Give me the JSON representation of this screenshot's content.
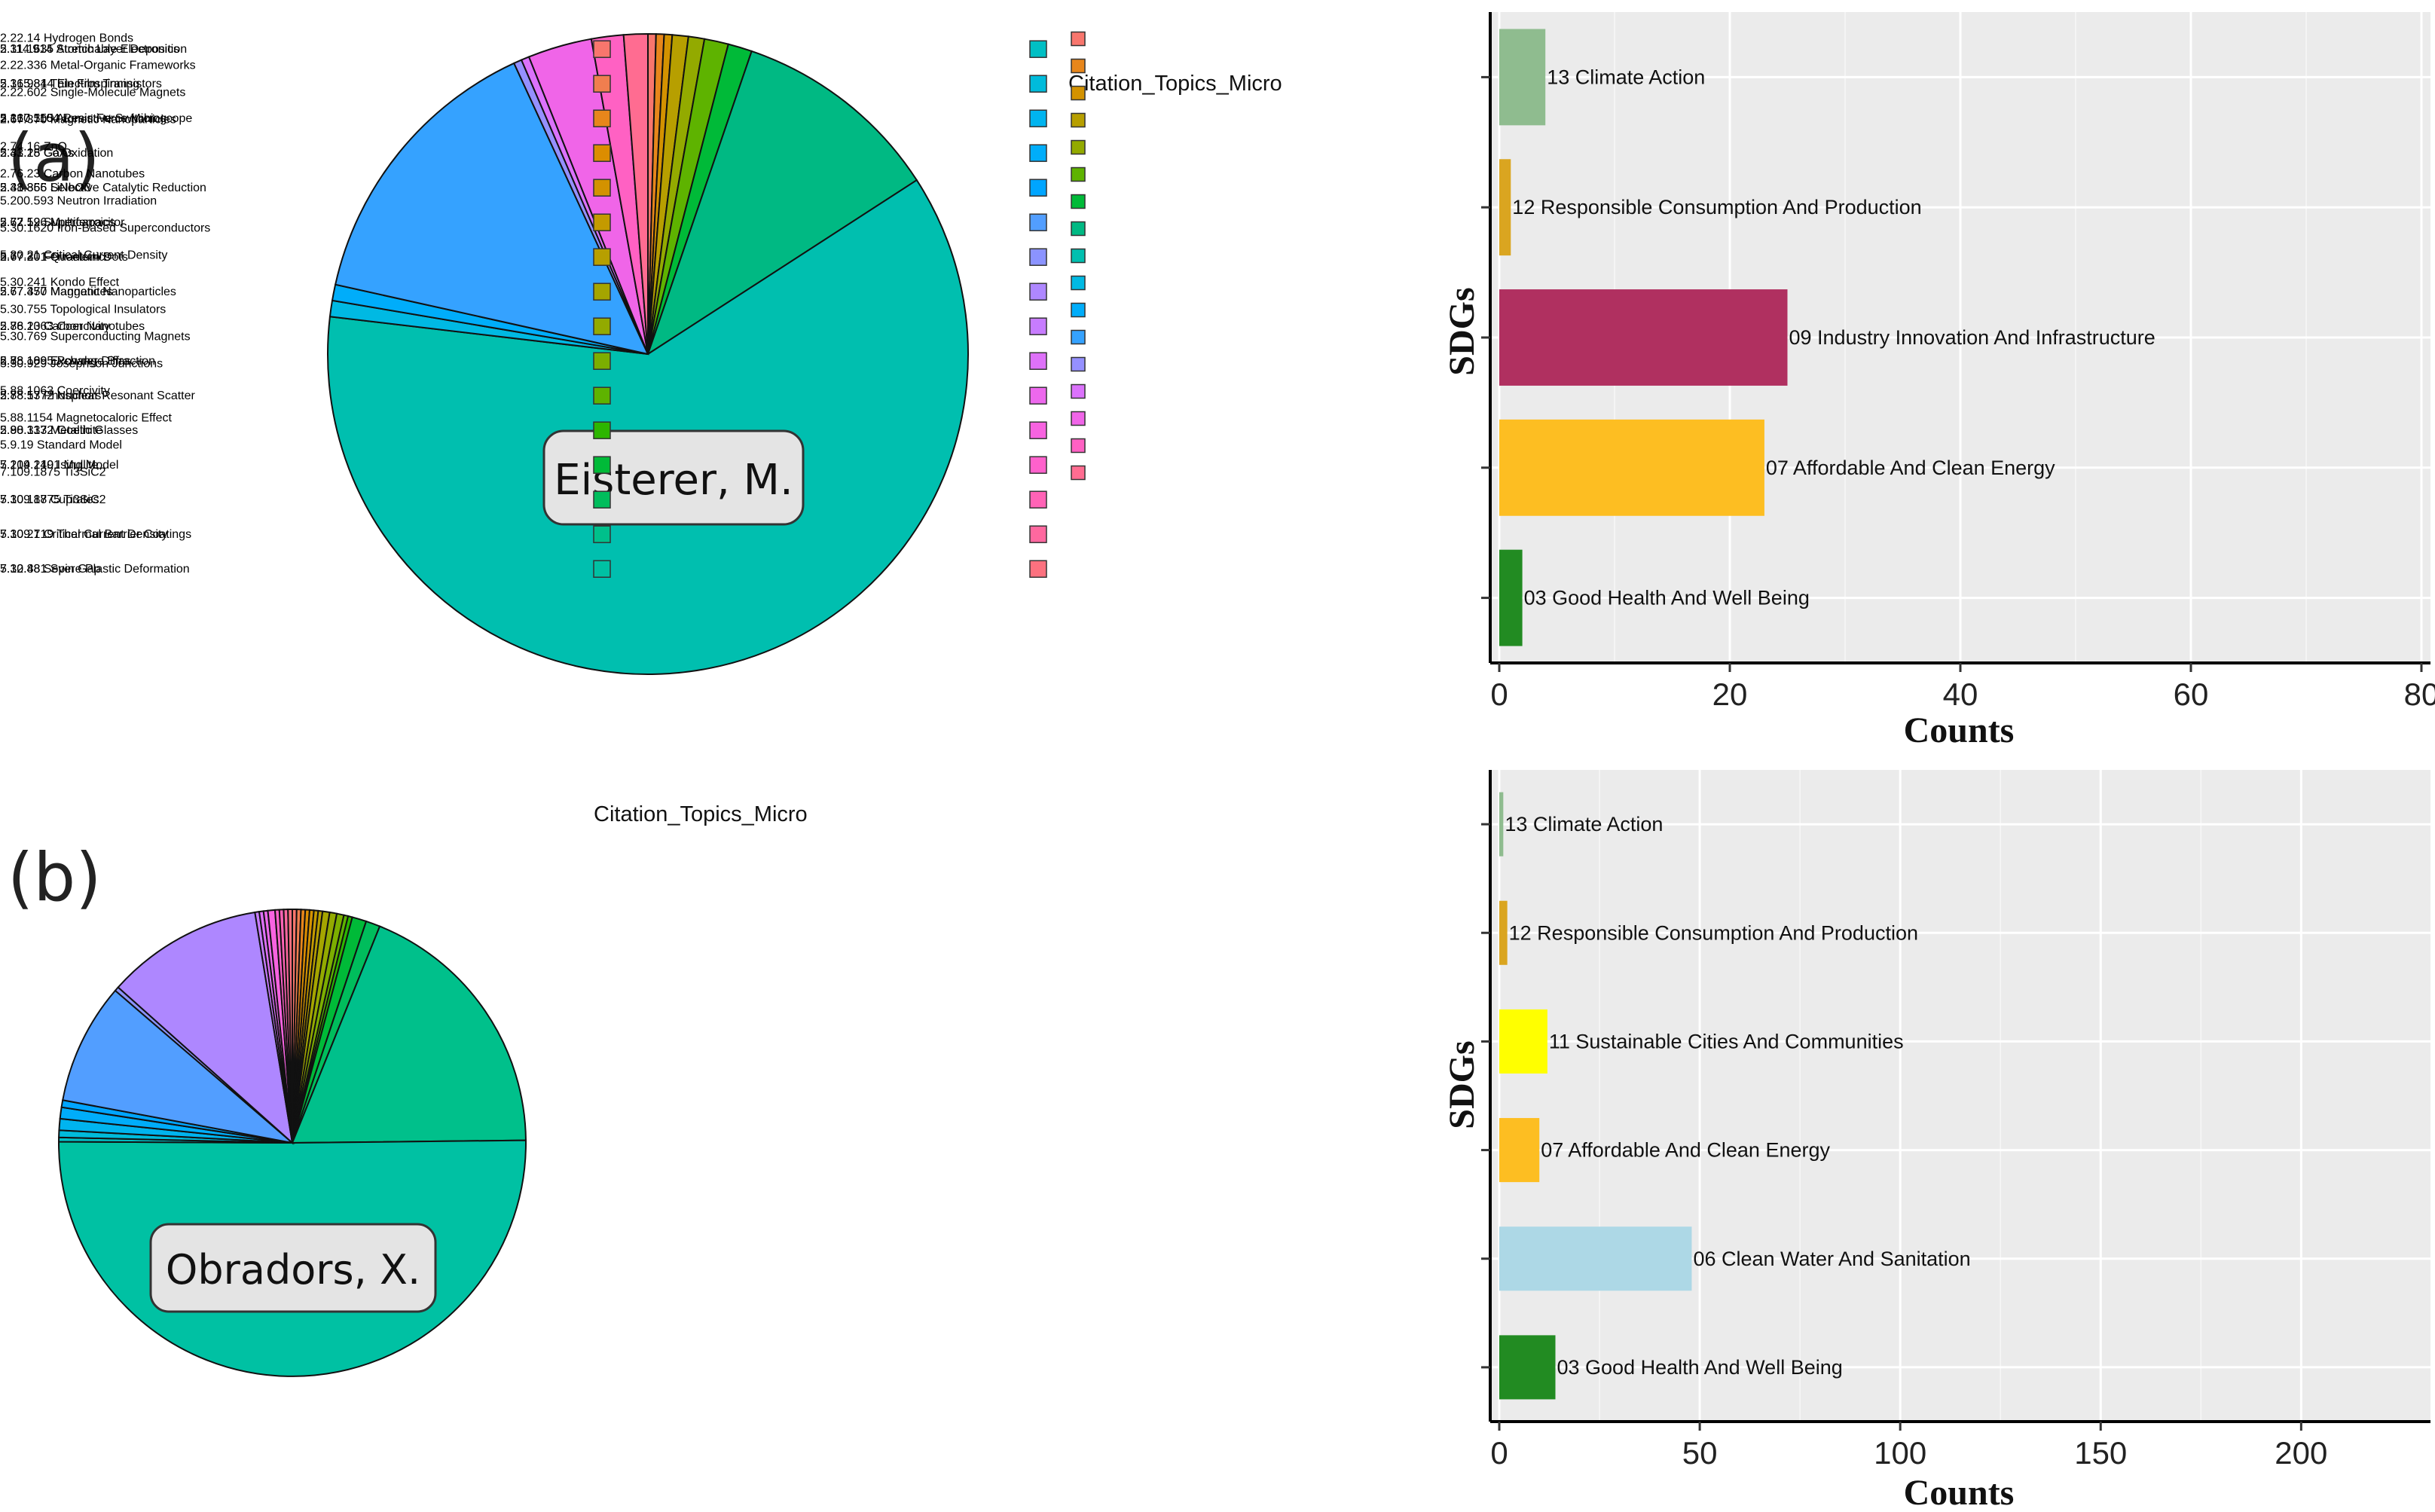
{
  "chart_data": [
    {
      "panel": "(a)",
      "type": "pie",
      "title": "Eisterer, M.",
      "legend_title": "Citation_Topics_Micro",
      "slices": [
        {
          "label": "2.22.14 Hydrogen Bonds",
          "value": 0.4,
          "color": "#F8766D"
        },
        {
          "label": "2.22.336 Metal-Organic Frameworks",
          "value": 0.4,
          "color": "#E7861B"
        },
        {
          "label": "2.22.602 Single-Molecule Magnets",
          "value": 0.4,
          "color": "#D39200"
        },
        {
          "label": "2.67.370 Magnetic Nanoparticles",
          "value": 0.8,
          "color": "#B79F00"
        },
        {
          "label": "2.74.16 ZnO",
          "value": 0.8,
          "color": "#93AA00"
        },
        {
          "label": "2.76.23 Carbon Nanotubes",
          "value": 1.2,
          "color": "#5EB300"
        },
        {
          "label": "5.200.593 Neutron Irradiation",
          "value": 1.2,
          "color": "#00BA38"
        },
        {
          "label": "5.30.1620 Iron-Based Superconductors",
          "value": 10.5,
          "color": "#00B983"
        },
        {
          "label": "5.30.21 Critical Current Density",
          "value": 60.4,
          "color": "#00BFAF"
        },
        {
          "label": "5.30.241 Kondo Effect",
          "value": 0.8,
          "color": "#00B9E3"
        },
        {
          "label": "5.30.755 Topological Insulators",
          "value": 0.8,
          "color": "#00ADFA"
        },
        {
          "label": "5.30.769 Superconducting Magnets",
          "value": 14.5,
          "color": "#35A2FF"
        },
        {
          "label": "5.30.929 Josephson Junctions",
          "value": 0.4,
          "color": "#9590FF"
        },
        {
          "label": "5.88.1063 Coercivity",
          "value": 0.4,
          "color": "#DB72FB"
        },
        {
          "label": "5.88.1154 Magnetocaloric Effect",
          "value": 3.2,
          "color": "#F065E8"
        },
        {
          "label": "5.9.19 Standard Model",
          "value": 1.6,
          "color": "#FF61C3"
        },
        {
          "label": "7.109.1875 Ti3SiC2",
          "value": 1.2,
          "color": "#FF6C91"
        }
      ]
    },
    {
      "panel": "(a)",
      "type": "bar",
      "orientation": "horizontal",
      "xlabel": "Counts",
      "ylabel": "SDGs",
      "xlim": [
        0,
        80
      ],
      "xticks": [
        0,
        20,
        40,
        60,
        80
      ],
      "bars": [
        {
          "label": "13 Climate Action",
          "value": 4,
          "color": "#8FBC8F"
        },
        {
          "label": "12 Responsible Consumption And Production",
          "value": 1,
          "color": "#DAA520"
        },
        {
          "label": "09 Industry Innovation And Infrastructure",
          "value": 25,
          "color": "#B03060"
        },
        {
          "label": "07 Affordable And Clean Energy",
          "value": 23,
          "color": "#FDBE22"
        },
        {
          "label": "03 Good Health And Well Being",
          "value": 2,
          "color": "#228B22"
        }
      ]
    },
    {
      "panel": "(b)",
      "type": "pie",
      "title": "Obradors, X.",
      "legend_title": "Citation_Topics_Micro",
      "slices": [
        {
          "label": "2.114.914 Stretchable Electronics",
          "value": 0.3,
          "color": "#F8766D"
        },
        {
          "label": "2.165.844 Electrospinning",
          "value": 0.3,
          "color": "#F07E4F"
        },
        {
          "label": "2.167.555 Atomic Force Microscope",
          "value": 0.3,
          "color": "#E7861B"
        },
        {
          "label": "2.41.25 Co Oxidation",
          "value": 0.3,
          "color": "#DC8D00"
        },
        {
          "label": "2.41.366 Selective Catalytic Reduction",
          "value": 0.3,
          "color": "#D39200"
        },
        {
          "label": "2.62.52 Supercapacitor",
          "value": 0.3,
          "color": "#C49A00"
        },
        {
          "label": "2.67.301 Quantum Dots",
          "value": 0.3,
          "color": "#B79F00"
        },
        {
          "label": "2.67.370 Magnetic Nanoparticles",
          "value": 0.5,
          "color": "#A5A500"
        },
        {
          "label": "2.76.23 Carbon Nanotubes",
          "value": 0.5,
          "color": "#93AA00"
        },
        {
          "label": "2.78.1895 Powder Diffraction",
          "value": 0.5,
          "color": "#7CAE00"
        },
        {
          "label": "2.78.53 Phosphors",
          "value": 0.3,
          "color": "#5EB300"
        },
        {
          "label": "2.90.1332 Goethite",
          "value": 0.3,
          "color": "#2DB600"
        },
        {
          "label": "5.214.210 Ising Model",
          "value": 1.0,
          "color": "#00BA38"
        },
        {
          "label": "5.30.187 Cuprates",
          "value": 1.0,
          "color": "#00BD5C"
        },
        {
          "label": "5.30.21 Critical Current Density",
          "value": 19.0,
          "color": "#00C08B"
        },
        {
          "label": "5.30.481 Spin Gap",
          "value": 51.0,
          "color": "#00C1A3"
        },
        {
          "label": "5.31.1635 Atomic Layer Deposition",
          "value": 0.3,
          "color": "#00BFC4"
        },
        {
          "label": "5.31.981 Thin Film Transistors",
          "value": 0.5,
          "color": "#00BBDB"
        },
        {
          "label": "5.310.1164 Resistive Switching",
          "value": 0.8,
          "color": "#00B4EF"
        },
        {
          "label": "5.33.18 GaAs",
          "value": 0.8,
          "color": "#00ADFA"
        },
        {
          "label": "5.38.855 LiNbO3",
          "value": 0.5,
          "color": "#00A5FF"
        },
        {
          "label": "5.77.196 Multiferroics",
          "value": 8.5,
          "color": "#529EFF"
        },
        {
          "label": "5.77.20 Ferroeletrics",
          "value": 0.3,
          "color": "#8B93FF"
        },
        {
          "label": "5.77.457 Manganites",
          "value": 11.0,
          "color": "#AE87FF"
        },
        {
          "label": "5.88.1063 Coercivity",
          "value": 0.3,
          "color": "#C77CFF"
        },
        {
          "label": "5.88.109 Exchange Bias",
          "value": 0.3,
          "color": "#DE71F9"
        },
        {
          "label": "5.88.1772 Nuclear Resonant Scatter",
          "value": 0.3,
          "color": "#ED68ED"
        },
        {
          "label": "5.88.317 Metallic Glasses",
          "value": 0.5,
          "color": "#F763E0"
        },
        {
          "label": "7.109.1491 Mullite",
          "value": 0.3,
          "color": "#FF61CC"
        },
        {
          "label": "7.109.1875 Ti3SiC2",
          "value": 0.3,
          "color": "#FF63B6"
        },
        {
          "label": "7.109.719 Thermal Barrier Coatings",
          "value": 0.3,
          "color": "#FF689F"
        },
        {
          "label": "7.12.88 Severe Plastic Deformation",
          "value": 0.3,
          "color": "#FC717F"
        }
      ]
    },
    {
      "panel": "(b)",
      "type": "bar",
      "orientation": "horizontal",
      "xlabel": "Counts",
      "ylabel": "SDGs",
      "xlim": [
        0,
        230
      ],
      "xticks": [
        0,
        50,
        100,
        150,
        200
      ],
      "bars": [
        {
          "label": "13 Climate Action",
          "value": 1,
          "color": "#8FBC8F"
        },
        {
          "label": "12 Responsible Consumption And Production",
          "value": 2,
          "color": "#DAA520"
        },
        {
          "label": "11 Sustainable Cities And Communities",
          "value": 12,
          "color": "#FFFF00"
        },
        {
          "label": "07 Affordable And Clean Energy",
          "value": 10,
          "color": "#FDBE22"
        },
        {
          "label": "06 Clean Water And Sanitation",
          "value": 48,
          "color": "#ADD8E6"
        },
        {
          "label": "03 Good Health And Well Being",
          "value": 14,
          "color": "#228B22"
        }
      ]
    }
  ]
}
